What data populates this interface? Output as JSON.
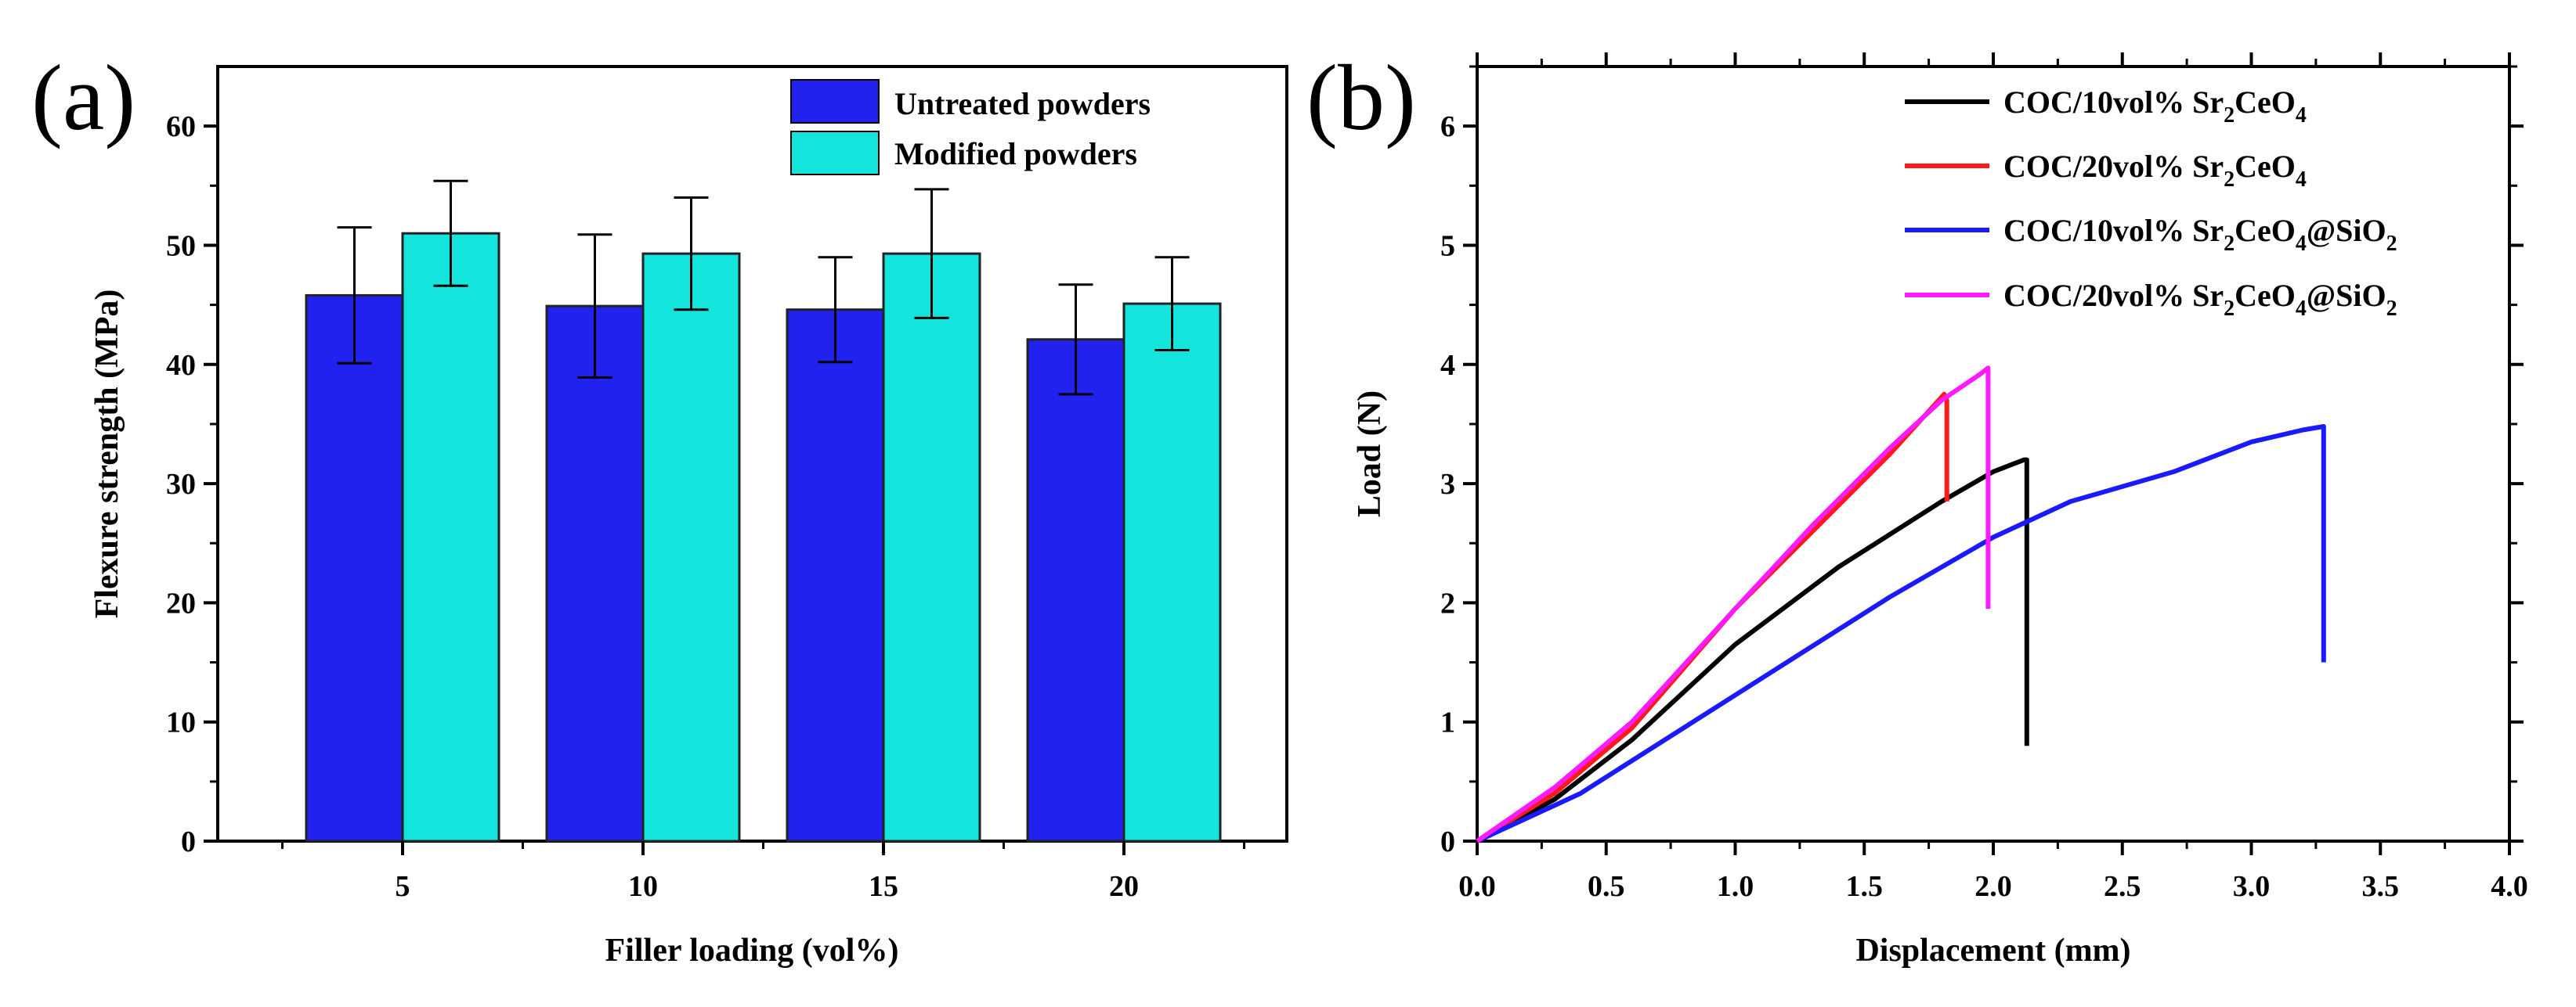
{
  "chart_data": [
    {
      "type": "bar",
      "panel_label": "(a)",
      "xlabel": "Filler loading (vol%)",
      "ylabel": "Flexure strength (MPa)",
      "ylim": [
        0,
        65
      ],
      "yticks": [
        0,
        10,
        20,
        30,
        40,
        50,
        60
      ],
      "categories": [
        "5",
        "10",
        "15",
        "20"
      ],
      "legend_position": "top-right",
      "series": [
        {
          "name": "Untreated powders",
          "color": "#2121f0",
          "values": [
            45.8,
            44.9,
            44.6,
            42.1
          ],
          "error": [
            5.7,
            6.0,
            4.4,
            4.6
          ]
        },
        {
          "name": "Modified powders",
          "color": "#13e4dc",
          "values": [
            51.0,
            49.3,
            49.3,
            45.1
          ],
          "error": [
            4.4,
            4.7,
            5.4,
            3.9
          ]
        }
      ]
    },
    {
      "type": "line",
      "panel_label": "(b)",
      "xlabel": "Displacement (mm)",
      "ylabel": "Load (N)",
      "xlim": [
        0,
        4.0
      ],
      "ylim": [
        0,
        6.5
      ],
      "xticks": [
        "0.0",
        "0.5",
        "1.0",
        "1.5",
        "2.0",
        "2.5",
        "3.0",
        "3.5",
        "4.0"
      ],
      "yticks": [
        "0",
        "1",
        "2",
        "3",
        "4",
        "5",
        "6"
      ],
      "legend_position": "top-right",
      "series": [
        {
          "name": "COC/10vol% Sr2CeO4",
          "legend_parts": [
            "COC/10vol% Sr",
            "2",
            "CeO",
            "4"
          ],
          "color": "#000000",
          "x": [
            0,
            0.3,
            0.6,
            1.0,
            1.4,
            1.8,
            2.0,
            2.12,
            2.13,
            2.13
          ],
          "y": [
            0,
            0.35,
            0.85,
            1.65,
            2.3,
            2.85,
            3.1,
            3.2,
            3.2,
            0.8
          ]
        },
        {
          "name": "COC/20vol% Sr2CeO4",
          "legend_parts": [
            "COC/20vol% Sr",
            "2",
            "CeO",
            "4"
          ],
          "color": "#ff1a1a",
          "x": [
            0,
            0.3,
            0.6,
            1.0,
            1.3,
            1.6,
            1.81,
            1.82,
            1.82
          ],
          "y": [
            0,
            0.4,
            0.95,
            1.95,
            2.6,
            3.25,
            3.75,
            3.7,
            2.85
          ]
        },
        {
          "name": "COC/10vol% Sr2CeO4@SiO2",
          "legend_parts": [
            "COC/10vol% Sr",
            "2",
            "CeO",
            "4",
            "@SiO",
            "2"
          ],
          "color": "#1a1aff",
          "x": [
            0,
            0.4,
            0.8,
            1.2,
            1.6,
            2.0,
            2.3,
            2.7,
            3.0,
            3.2,
            3.28,
            3.28
          ],
          "y": [
            0,
            0.4,
            0.95,
            1.5,
            2.05,
            2.55,
            2.85,
            3.1,
            3.35,
            3.45,
            3.48,
            1.5
          ]
        },
        {
          "name": "COC/20vol% Sr2CeO4@SiO2",
          "legend_parts": [
            "COC/20vol% Sr",
            "2",
            "CeO",
            "4",
            "@SiO",
            "2"
          ],
          "color": "#ff1aff",
          "x": [
            0,
            0.3,
            0.6,
            1.0,
            1.3,
            1.6,
            1.8,
            1.95,
            1.98,
            1.98
          ],
          "y": [
            0,
            0.45,
            1.0,
            1.95,
            2.65,
            3.3,
            3.7,
            3.92,
            3.97,
            1.95
          ]
        }
      ]
    }
  ]
}
